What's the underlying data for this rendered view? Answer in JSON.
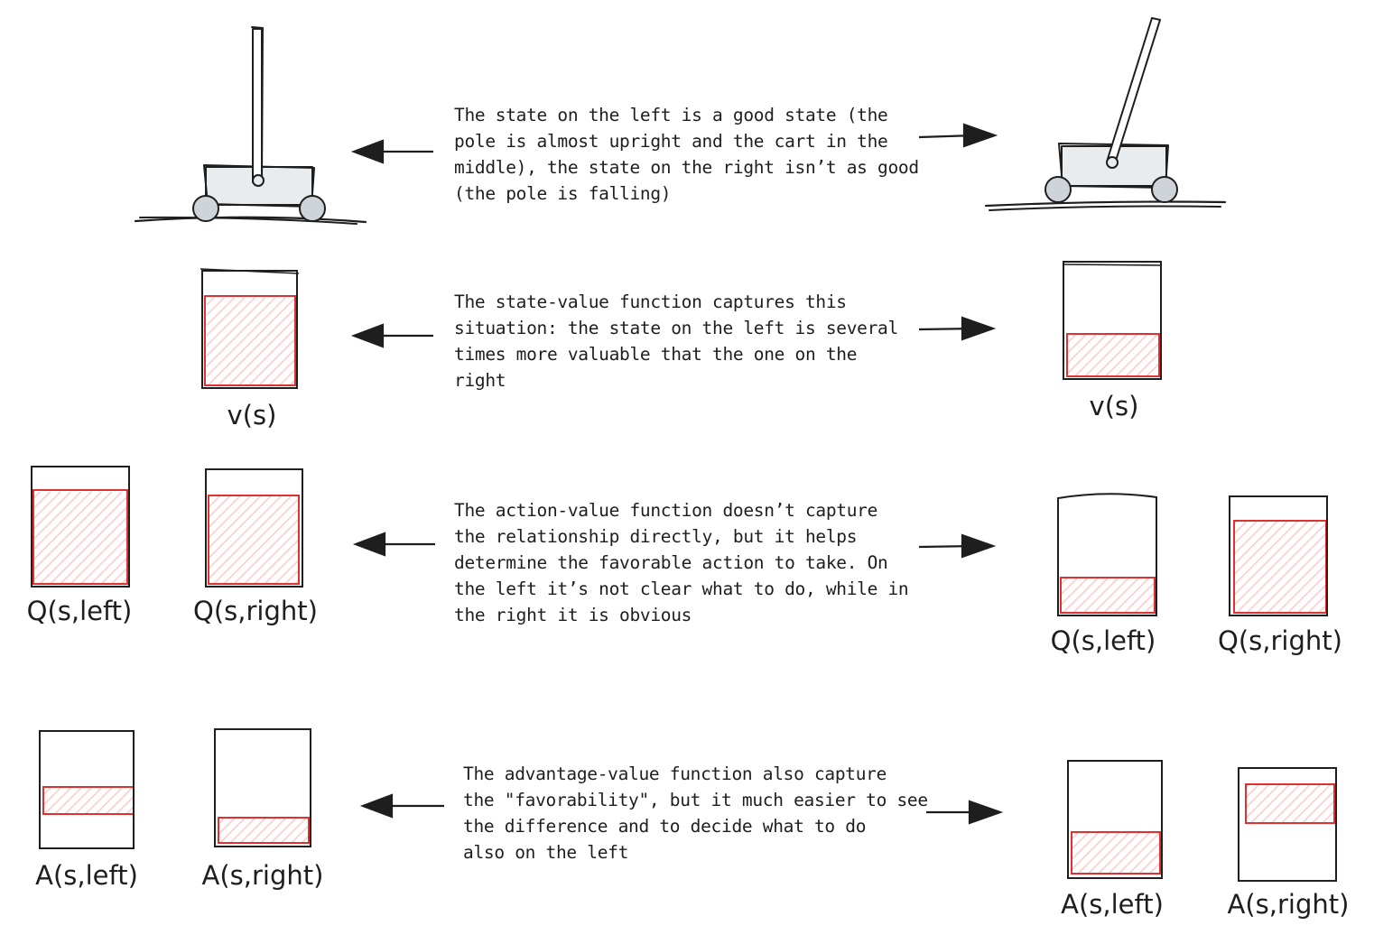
{
  "colors": {
    "ink": "#1e1e1e",
    "value_stroke": "#e03131",
    "value_fill": "#ffc9c9"
  },
  "rows": [
    {
      "caption": "The state on the left is a good state (the\npole is almost upright and the cart in the\nmiddle), the state on the right isn’t as good\n(the pole is falling)"
    },
    {
      "caption": "The state-value function captures this\nsituation: the state on the left is several\ntimes more valuable that the one on the\nright",
      "left_labels": [
        "v(s)"
      ],
      "right_labels": [
        "v(s)"
      ]
    },
    {
      "caption": "The action-value function doesn’t capture\nthe relationship directly, but it helps\ndetermine the favorable action to take. On\nthe left it’s not clear what to do, while in\nthe right it is obvious",
      "left_labels": [
        "Q(s,left)",
        "Q(s,right)"
      ],
      "right_labels": [
        "Q(s,left)",
        "Q(s,right)"
      ]
    },
    {
      "caption": "The advantage-value function also capture\nthe \"favorability\", but it much easier to see\nthe difference and to decide what to do\nalso on the left",
      "left_labels": [
        "A(s,left)",
        "A(s,right)"
      ],
      "right_labels": [
        "A(s,left)",
        "A(s,right)"
      ]
    }
  ],
  "icons": {
    "left_state": "cartpole-upright-icon",
    "right_state": "cartpole-falling-icon",
    "arrow_left": "arrow-left-icon",
    "arrow_right": "arrow-right-icon"
  }
}
